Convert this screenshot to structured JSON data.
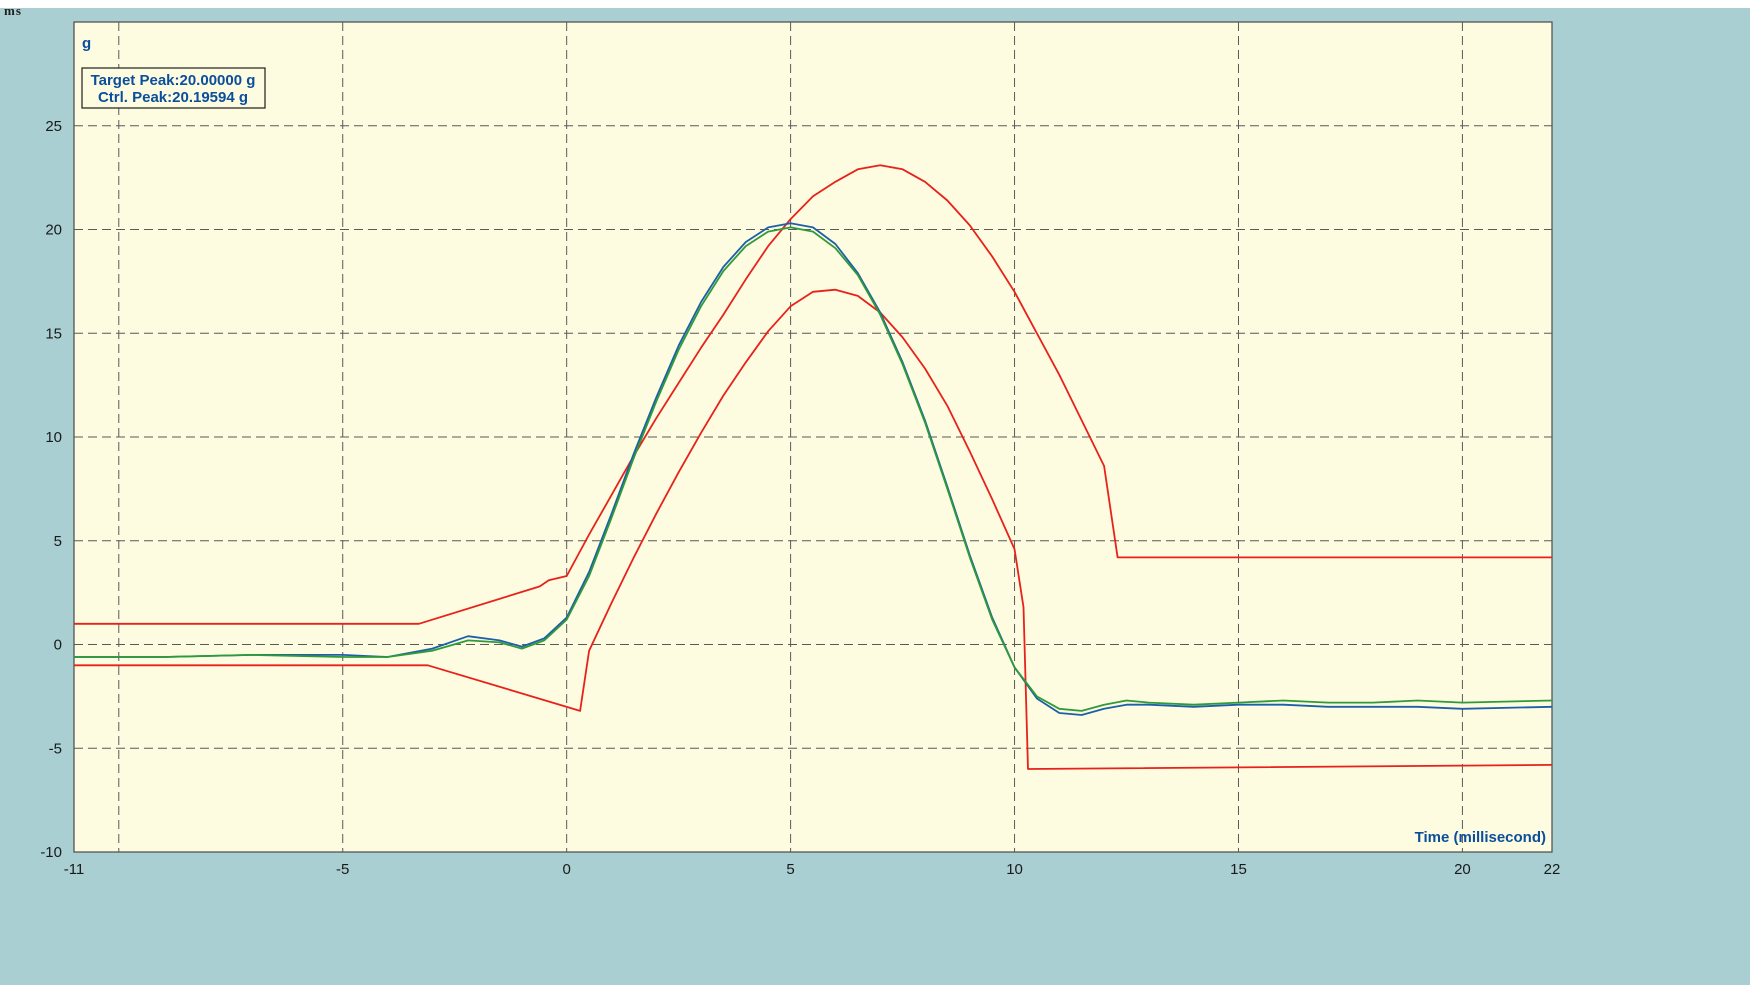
{
  "top_fragment": "ms",
  "chart_data": {
    "type": "line",
    "ylabel": "g",
    "xlabel": "Time (millisecond)",
    "xlim": [
      -11,
      22
    ],
    "ylim": [
      -10,
      30
    ],
    "x_ticks": [
      -11,
      -5,
      0,
      5,
      10,
      15,
      20,
      22
    ],
    "y_ticks": [
      -10,
      -5,
      0,
      5,
      10,
      15,
      20,
      25
    ],
    "grid": true,
    "grid_x": [
      -10,
      -5,
      0,
      5,
      10,
      15,
      20
    ],
    "grid_y": [
      -5,
      0,
      5,
      10,
      15,
      20,
      25
    ],
    "legend": {
      "placement": "top-left",
      "lines": [
        "Target Peak:20.00000 g",
        "Ctrl. Peak:20.19594 g"
      ]
    },
    "colors": {
      "plot_bg": "#fdfbe0",
      "frame_bg": "#a9cfd2",
      "grid": "#5a5a5a",
      "tolerance": "#e8211a",
      "control": "#1d5fa8",
      "reference": "#2f9a3a",
      "legend_text": "#0b4f9c"
    },
    "series": [
      {
        "role": "upper-tolerance",
        "color": "#e8211a",
        "points": [
          [
            -11,
            1.0
          ],
          [
            -3.3,
            1.0
          ],
          [
            -0.6,
            2.8
          ],
          [
            -0.4,
            3.1
          ],
          [
            0,
            3.3
          ],
          [
            0.5,
            5.3
          ],
          [
            1,
            7.2
          ],
          [
            1.5,
            9.1
          ],
          [
            2,
            10.9
          ],
          [
            2.5,
            12.6
          ],
          [
            3,
            14.3
          ],
          [
            3.5,
            15.9
          ],
          [
            4,
            17.6
          ],
          [
            4.5,
            19.2
          ],
          [
            5,
            20.5
          ],
          [
            5.5,
            21.6
          ],
          [
            6,
            22.3
          ],
          [
            6.5,
            22.9
          ],
          [
            7,
            23.1
          ],
          [
            7.5,
            22.9
          ],
          [
            8,
            22.3
          ],
          [
            8.5,
            21.4
          ],
          [
            9,
            20.2
          ],
          [
            9.5,
            18.7
          ],
          [
            10,
            17.0
          ],
          [
            10.5,
            15.0
          ],
          [
            11,
            13.0
          ],
          [
            11.5,
            10.8
          ],
          [
            12,
            8.6
          ],
          [
            12.3,
            4.2
          ],
          [
            22,
            4.2
          ]
        ]
      },
      {
        "role": "lower-tolerance",
        "color": "#e8211a",
        "points": [
          [
            -11,
            -1.0
          ],
          [
            -3.1,
            -1.0
          ],
          [
            0.3,
            -3.2
          ],
          [
            0.5,
            -0.3
          ],
          [
            1,
            2.0
          ],
          [
            1.5,
            4.2
          ],
          [
            2,
            6.3
          ],
          [
            2.5,
            8.3
          ],
          [
            3,
            10.2
          ],
          [
            3.5,
            12.0
          ],
          [
            4,
            13.6
          ],
          [
            4.5,
            15.1
          ],
          [
            5,
            16.3
          ],
          [
            5.5,
            17.0
          ],
          [
            6,
            17.1
          ],
          [
            6.5,
            16.8
          ],
          [
            7,
            16.0
          ],
          [
            7.5,
            14.8
          ],
          [
            8,
            13.3
          ],
          [
            8.5,
            11.5
          ],
          [
            9,
            9.3
          ],
          [
            9.5,
            7.0
          ],
          [
            10,
            4.6
          ],
          [
            10.2,
            1.8
          ],
          [
            10.3,
            -6.0
          ],
          [
            22,
            -5.8
          ]
        ]
      },
      {
        "role": "control",
        "color": "#1d5fa8",
        "points": [
          [
            -11,
            -0.6
          ],
          [
            -9,
            -0.6
          ],
          [
            -7,
            -0.5
          ],
          [
            -5,
            -0.5
          ],
          [
            -4,
            -0.6
          ],
          [
            -3,
            -0.2
          ],
          [
            -2.2,
            0.4
          ],
          [
            -1.5,
            0.2
          ],
          [
            -1,
            -0.1
          ],
          [
            -0.5,
            0.3
          ],
          [
            0,
            1.3
          ],
          [
            0.5,
            3.5
          ],
          [
            1,
            6.3
          ],
          [
            1.5,
            9.2
          ],
          [
            2,
            11.9
          ],
          [
            2.5,
            14.4
          ],
          [
            3,
            16.5
          ],
          [
            3.5,
            18.2
          ],
          [
            4,
            19.4
          ],
          [
            4.5,
            20.1
          ],
          [
            5,
            20.3
          ],
          [
            5.5,
            20.1
          ],
          [
            6,
            19.3
          ],
          [
            6.5,
            17.9
          ],
          [
            7,
            16.0
          ],
          [
            7.5,
            13.6
          ],
          [
            8,
            10.8
          ],
          [
            8.5,
            7.6
          ],
          [
            9,
            4.3
          ],
          [
            9.5,
            1.3
          ],
          [
            10,
            -1.1
          ],
          [
            10.5,
            -2.6
          ],
          [
            11,
            -3.3
          ],
          [
            11.5,
            -3.4
          ],
          [
            12,
            -3.1
          ],
          [
            12.5,
            -2.9
          ],
          [
            13,
            -2.9
          ],
          [
            14,
            -3.0
          ],
          [
            15,
            -2.9
          ],
          [
            16,
            -2.9
          ],
          [
            17,
            -3.0
          ],
          [
            18,
            -3.0
          ],
          [
            19,
            -3.0
          ],
          [
            20,
            -3.1
          ],
          [
            22,
            -3.0
          ]
        ]
      },
      {
        "role": "reference",
        "color": "#2f9a3a",
        "points": [
          [
            -11,
            -0.6
          ],
          [
            -9,
            -0.6
          ],
          [
            -7,
            -0.5
          ],
          [
            -5,
            -0.6
          ],
          [
            -4,
            -0.6
          ],
          [
            -3,
            -0.3
          ],
          [
            -2.2,
            0.2
          ],
          [
            -1.5,
            0.1
          ],
          [
            -1,
            -0.2
          ],
          [
            -0.5,
            0.2
          ],
          [
            0,
            1.2
          ],
          [
            0.5,
            3.3
          ],
          [
            1,
            6.1
          ],
          [
            1.5,
            9.0
          ],
          [
            2,
            11.7
          ],
          [
            2.5,
            14.2
          ],
          [
            3,
            16.3
          ],
          [
            3.5,
            18.0
          ],
          [
            4,
            19.2
          ],
          [
            4.5,
            19.9
          ],
          [
            5,
            20.1
          ],
          [
            5.5,
            19.9
          ],
          [
            6,
            19.1
          ],
          [
            6.5,
            17.8
          ],
          [
            7,
            15.9
          ],
          [
            7.5,
            13.5
          ],
          [
            8,
            10.7
          ],
          [
            8.5,
            7.5
          ],
          [
            9,
            4.2
          ],
          [
            9.5,
            1.2
          ],
          [
            10,
            -1.1
          ],
          [
            10.5,
            -2.5
          ],
          [
            11,
            -3.1
          ],
          [
            11.5,
            -3.2
          ],
          [
            12,
            -2.9
          ],
          [
            12.5,
            -2.7
          ],
          [
            13,
            -2.8
          ],
          [
            14,
            -2.9
          ],
          [
            15,
            -2.8
          ],
          [
            16,
            -2.7
          ],
          [
            17,
            -2.8
          ],
          [
            18,
            -2.8
          ],
          [
            19,
            -2.7
          ],
          [
            20,
            -2.8
          ],
          [
            22,
            -2.7
          ]
        ]
      }
    ]
  }
}
